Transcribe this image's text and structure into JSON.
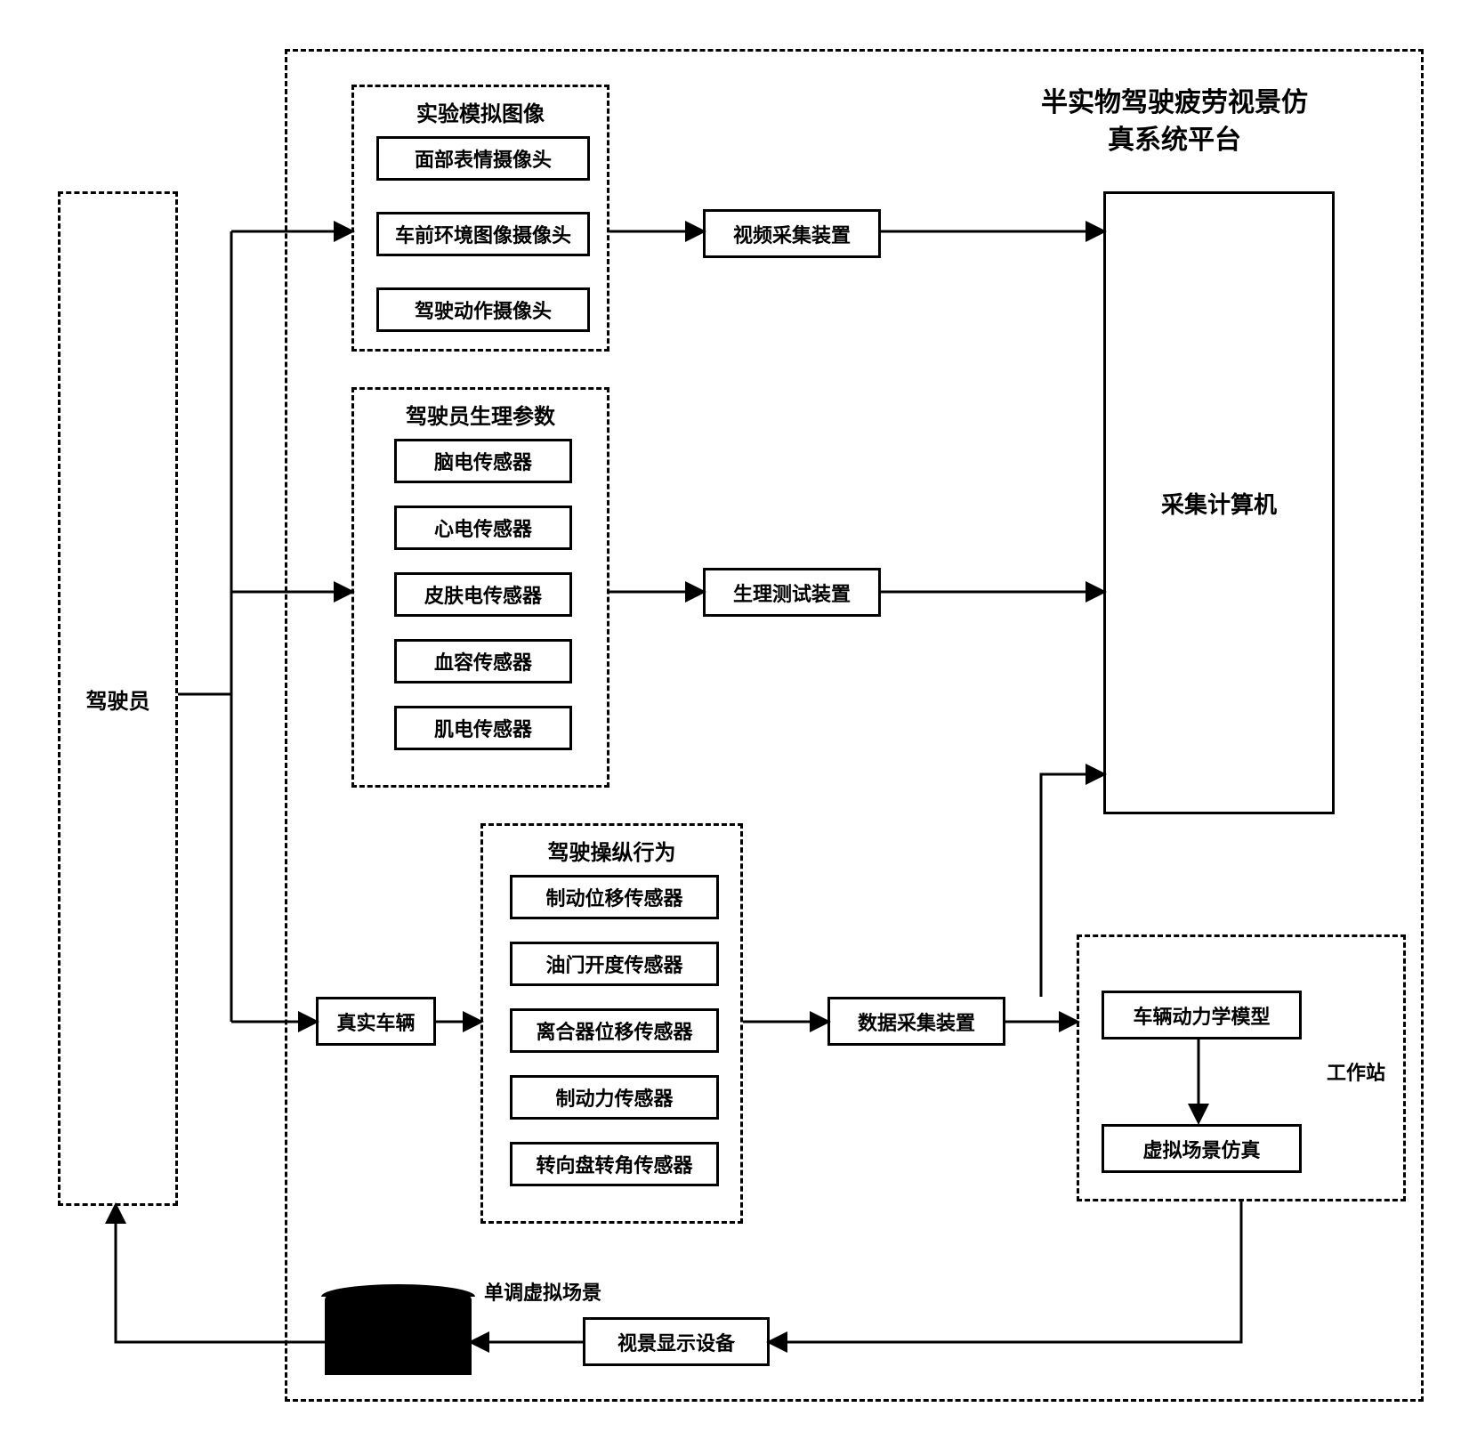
{
  "style": {
    "background_color": "#ffffff",
    "border_color": "#000000",
    "border_width": 3,
    "dash_pattern": "8,6",
    "font_family": "SimSun",
    "title_fontsize": 30,
    "group_title_fontsize": 24,
    "box_fontsize": 22,
    "arrow_color": "#000000",
    "arrow_width": 3
  },
  "platform_title": "半实物驾驶疲劳视景仿\n真系统平台",
  "driver_box": {
    "label": "驾驶员"
  },
  "group_images": {
    "title": "实验模拟图像",
    "items": [
      "面部表情摄像头",
      "车前环境图像摄像头",
      "驾驶动作摄像头"
    ]
  },
  "group_physio": {
    "title": "驾驶员生理参数",
    "items": [
      "脑电传感器",
      "心电传感器",
      "皮肤电传感器",
      "血容传感器",
      "肌电传感器"
    ]
  },
  "group_behavior": {
    "title": "驾驶操纵行为",
    "items": [
      "制动位移传感器",
      "油门开度传感器",
      "离合器位移传感器",
      "制动力传感器",
      "转向盘转角传感器"
    ]
  },
  "real_vehicle": {
    "label": "真实车辆"
  },
  "video_capture": {
    "label": "视频采集装置"
  },
  "physio_test": {
    "label": "生理测试装置"
  },
  "data_capture": {
    "label": "数据采集装置"
  },
  "collect_pc": {
    "label": "采集计算机"
  },
  "workstation": {
    "label": "工作站",
    "dyn_model": "车辆动力学模型",
    "scene_sim": "虚拟场景仿真"
  },
  "display_device": {
    "label": "视景显示设备"
  },
  "scene_label": "单调虚拟场景"
}
